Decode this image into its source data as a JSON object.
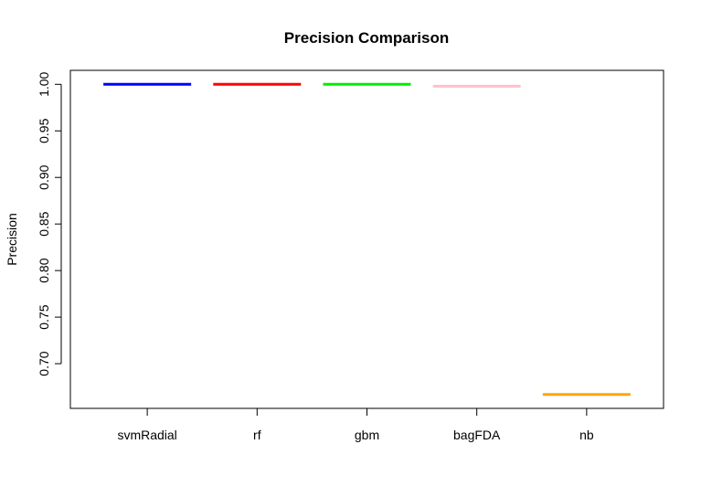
{
  "chart_data": {
    "type": "bar",
    "title": "Precision Comparison",
    "xlabel": "",
    "ylabel": "Precision",
    "categories": [
      "svmRadial",
      "rf",
      "gbm",
      "bagFDA",
      "nb"
    ],
    "values": [
      1.0,
      1.0,
      1.0,
      0.998,
      0.667
    ],
    "colors": [
      "#0000ff",
      "#ff0000",
      "#00ee00",
      "#ffc0cb",
      "#ffa500"
    ],
    "ylim": [
      0.652,
      1.015
    ],
    "yticks": [
      0.7,
      0.75,
      0.8,
      0.85,
      0.9,
      0.95,
      1.0
    ],
    "ytick_labels": [
      "0.70",
      "0.75",
      "0.80",
      "0.85",
      "0.90",
      "0.95",
      "1.00"
    ],
    "grid": false,
    "legend": "none",
    "mark_style": "horizontal segment per category"
  }
}
